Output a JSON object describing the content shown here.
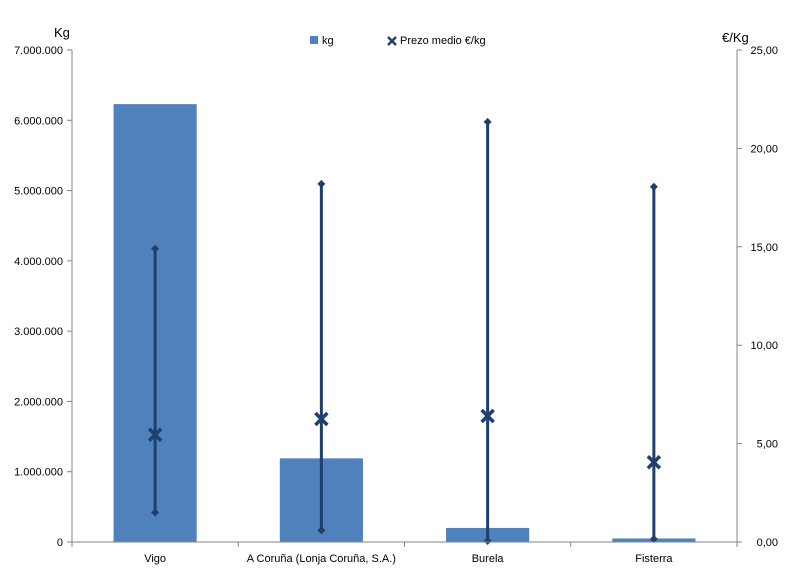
{
  "chart_data": {
    "type": "bar",
    "categories": [
      "Vigo",
      "A Coruña (Lonja Coruña, S.A.)",
      "Burela",
      "Fisterra"
    ],
    "left_axis": {
      "label": "Kg",
      "ylim": [
        0,
        7000000
      ],
      "ticks": [
        0,
        1000000,
        2000000,
        3000000,
        4000000,
        5000000,
        6000000,
        7000000
      ],
      "tick_labels": [
        "0",
        "1.000.000",
        "2.000.000",
        "3.000.000",
        "4.000.000",
        "5.000.000",
        "6.000.000",
        "7.000.000"
      ]
    },
    "right_axis": {
      "label": "€/Kg",
      "ylim": [
        0,
        25
      ],
      "ticks": [
        0,
        5,
        10,
        15,
        20,
        25
      ],
      "tick_labels": [
        "0,00",
        "5,00",
        "10,00",
        "15,00",
        "20,00",
        "25,00"
      ]
    },
    "series": [
      {
        "name": "kg",
        "type": "bar",
        "axis": "left",
        "values": [
          6230000,
          1190000,
          200000,
          50000
        ]
      },
      {
        "name": "Prezo medio €/kg",
        "type": "marker",
        "axis": "right",
        "values": [
          5.45,
          6.25,
          6.4,
          4.05
        ]
      }
    ],
    "ranges": {
      "axis": "right",
      "min": [
        1.5,
        0.6,
        0.05,
        0.15
      ],
      "max": [
        14.9,
        18.2,
        21.35,
        18.05
      ]
    },
    "legend": {
      "position": "top-center",
      "entries": [
        "kg",
        "Prezo medio €/kg"
      ]
    },
    "grid": false,
    "colors": {
      "bar": "#4f81bd",
      "marker": "#1f3f6e",
      "axis": "#868686"
    }
  }
}
